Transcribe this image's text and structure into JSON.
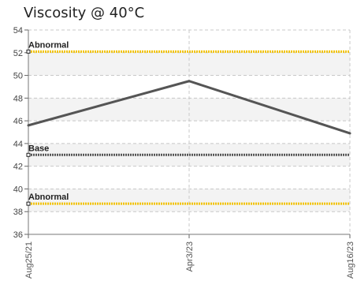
{
  "chart_data": {
    "type": "line",
    "title": "Viscosity @ 40°C",
    "xlabel": "",
    "ylabel": "",
    "ylim": [
      36,
      54
    ],
    "yticks": [
      36,
      38,
      40,
      42,
      44,
      46,
      48,
      50,
      52,
      54
    ],
    "categories": [
      "Aug25/21",
      "Apr3/23",
      "Aug16/23"
    ],
    "grid": true,
    "series": [
      {
        "values": [
          45.6,
          49.5,
          44.9
        ],
        "color": "#555555"
      }
    ],
    "reference_lines": [
      {
        "name": "Abnormal",
        "value": 52.1,
        "color": "#f2c200"
      },
      {
        "name": "Base",
        "value": 43.0,
        "color": "#555555"
      },
      {
        "name": "Abnormal",
        "value": 38.7,
        "color": "#f2c200"
      }
    ],
    "band_color": "#f3f3f3"
  }
}
